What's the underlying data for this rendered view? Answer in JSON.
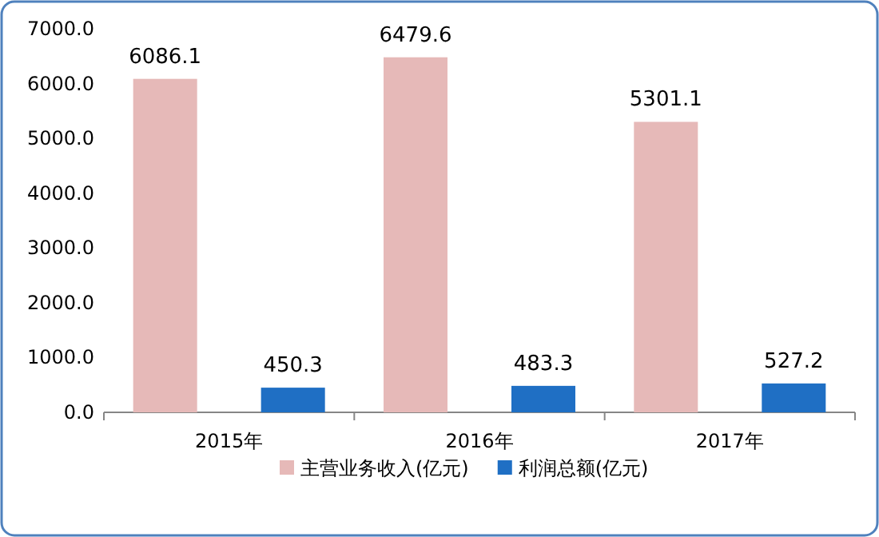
{
  "chart_data": {
    "type": "bar",
    "categories": [
      "2015年",
      "2016年",
      "2017年"
    ],
    "series": [
      {
        "name": "主营业务收入(亿元)",
        "color": "#e6b9b8",
        "values": [
          6086.1,
          6479.6,
          5301.1
        ]
      },
      {
        "name": "利润总额(亿元)",
        "color": "#1f6fc4",
        "values": [
          450.3,
          483.3,
          527.2
        ]
      }
    ],
    "ylim": [
      0,
      7000
    ],
    "yticks": [
      {
        "value": 0,
        "label": "0.0"
      },
      {
        "value": 1000,
        "label": "1000.0"
      },
      {
        "value": 2000,
        "label": "2000.0"
      },
      {
        "value": 3000,
        "label": "3000.0"
      },
      {
        "value": 4000,
        "label": "4000.0"
      },
      {
        "value": 5000,
        "label": "5000.0"
      },
      {
        "value": 6000,
        "label": "6000.0"
      },
      {
        "value": 7000,
        "label": "7000.0"
      }
    ],
    "data_labels": true,
    "legend": "bottom"
  }
}
